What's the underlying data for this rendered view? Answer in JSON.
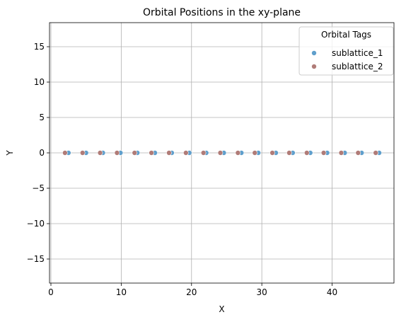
{
  "chart_data": {
    "type": "scatter",
    "title": "Orbital Positions in the xy-plane",
    "xlabel": "X",
    "ylabel": "Y",
    "xlim": [
      -0.2,
      48.8
    ],
    "ylim": [
      -18.4,
      18.4
    ],
    "xticks": [
      0,
      10,
      20,
      30,
      40
    ],
    "yticks": [
      -15,
      -10,
      -5,
      0,
      5,
      10,
      15
    ],
    "xtick_labels": [
      "0",
      "10",
      "20",
      "30",
      "40"
    ],
    "ytick_labels": [
      "−15",
      "−10",
      "−5",
      "0",
      "5",
      "10",
      "15"
    ],
    "grid": true,
    "legend": {
      "title": "Orbital Tags",
      "position": "top-right"
    },
    "series": [
      {
        "name": "sublattice_1",
        "color": "#5f9fcc",
        "x": [
          2.5,
          5.0,
          7.4,
          9.9,
          12.3,
          14.8,
          17.2,
          19.7,
          22.1,
          24.6,
          27.1,
          29.5,
          32.0,
          34.4,
          36.9,
          39.3,
          41.8,
          44.2,
          46.7
        ],
        "y": [
          0,
          0,
          0,
          0,
          0,
          0,
          0,
          0,
          0,
          0,
          0,
          0,
          0,
          0,
          0,
          0,
          0,
          0,
          0
        ]
      },
      {
        "name": "sublattice_2",
        "color": "#b07c78",
        "x": [
          2.0,
          4.5,
          7.0,
          9.4,
          11.9,
          14.3,
          16.8,
          19.2,
          21.7,
          24.1,
          26.6,
          29.0,
          31.5,
          33.9,
          36.4,
          38.8,
          41.3,
          43.7,
          46.2
        ],
        "y": [
          0,
          0,
          0,
          0,
          0,
          0,
          0,
          0,
          0,
          0,
          0,
          0,
          0,
          0,
          0,
          0,
          0,
          0,
          0
        ]
      }
    ]
  }
}
